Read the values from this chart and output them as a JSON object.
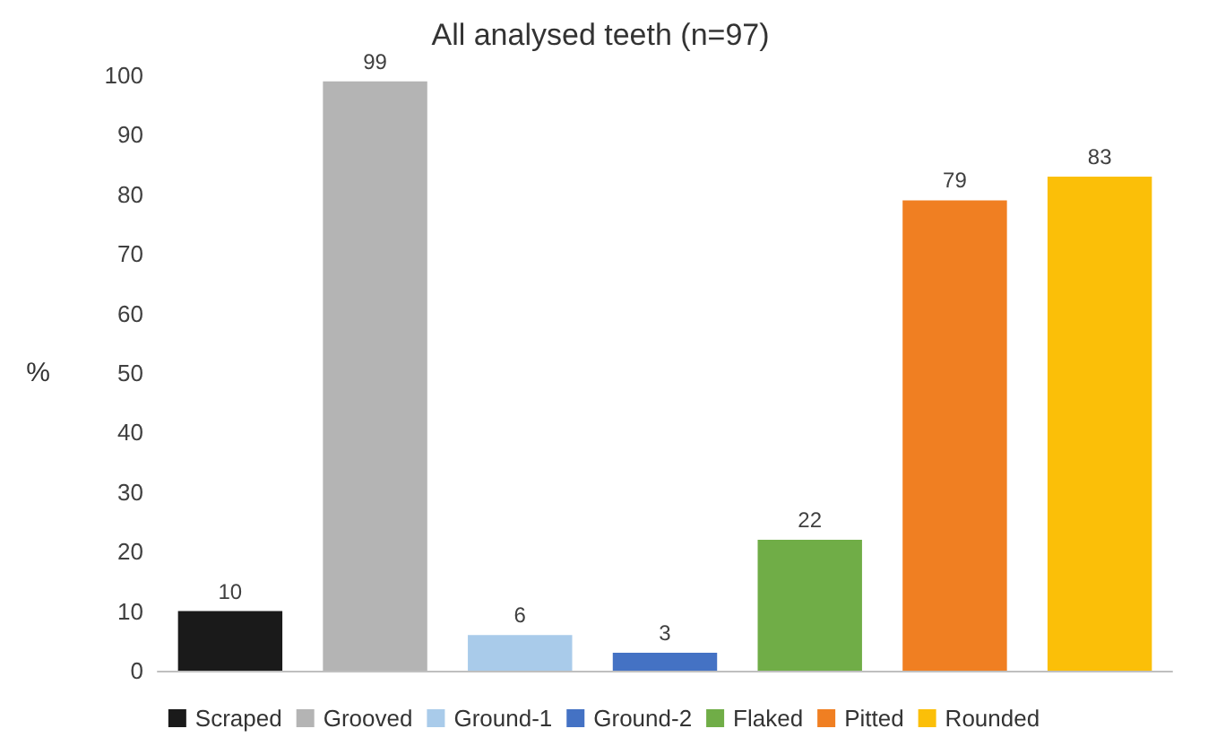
{
  "chart_data": {
    "type": "bar",
    "title": "All analysed teeth (n=97)",
    "ylabel": "%",
    "categories": [
      null,
      null,
      null,
      null,
      null,
      null,
      null
    ],
    "stacked": true,
    "data_labels": true,
    "legend": "bottom",
    "grid": false,
    "ylim": [
      0,
      100
    ],
    "yticks": [
      0,
      10,
      20,
      30,
      40,
      50,
      60,
      70,
      80,
      90,
      100
    ],
    "series": [
      {
        "name": "Scraped",
        "color": "#1a1a1a",
        "values": [
          10,
          null,
          null,
          null,
          null,
          null,
          null
        ]
      },
      {
        "name": "Grooved",
        "color": "#b4b4b4",
        "values": [
          null,
          99,
          null,
          null,
          null,
          null,
          null
        ]
      },
      {
        "name": "Ground-1",
        "color": "#a9cbea",
        "values": [
          null,
          null,
          6,
          null,
          null,
          null,
          null
        ]
      },
      {
        "name": "Ground-2",
        "color": "#4472c4",
        "values": [
          null,
          null,
          null,
          3,
          null,
          null,
          null
        ]
      },
      {
        "name": "Flaked",
        "color": "#70ad47",
        "values": [
          null,
          null,
          null,
          null,
          22,
          null,
          null
        ]
      },
      {
        "name": "Pitted",
        "color": "#f07f22",
        "values": [
          null,
          null,
          null,
          null,
          null,
          79,
          null
        ]
      },
      {
        "name": "Rounded",
        "color": "#fbbf08",
        "values": [
          null,
          null,
          null,
          null,
          null,
          null,
          83
        ]
      }
    ]
  }
}
